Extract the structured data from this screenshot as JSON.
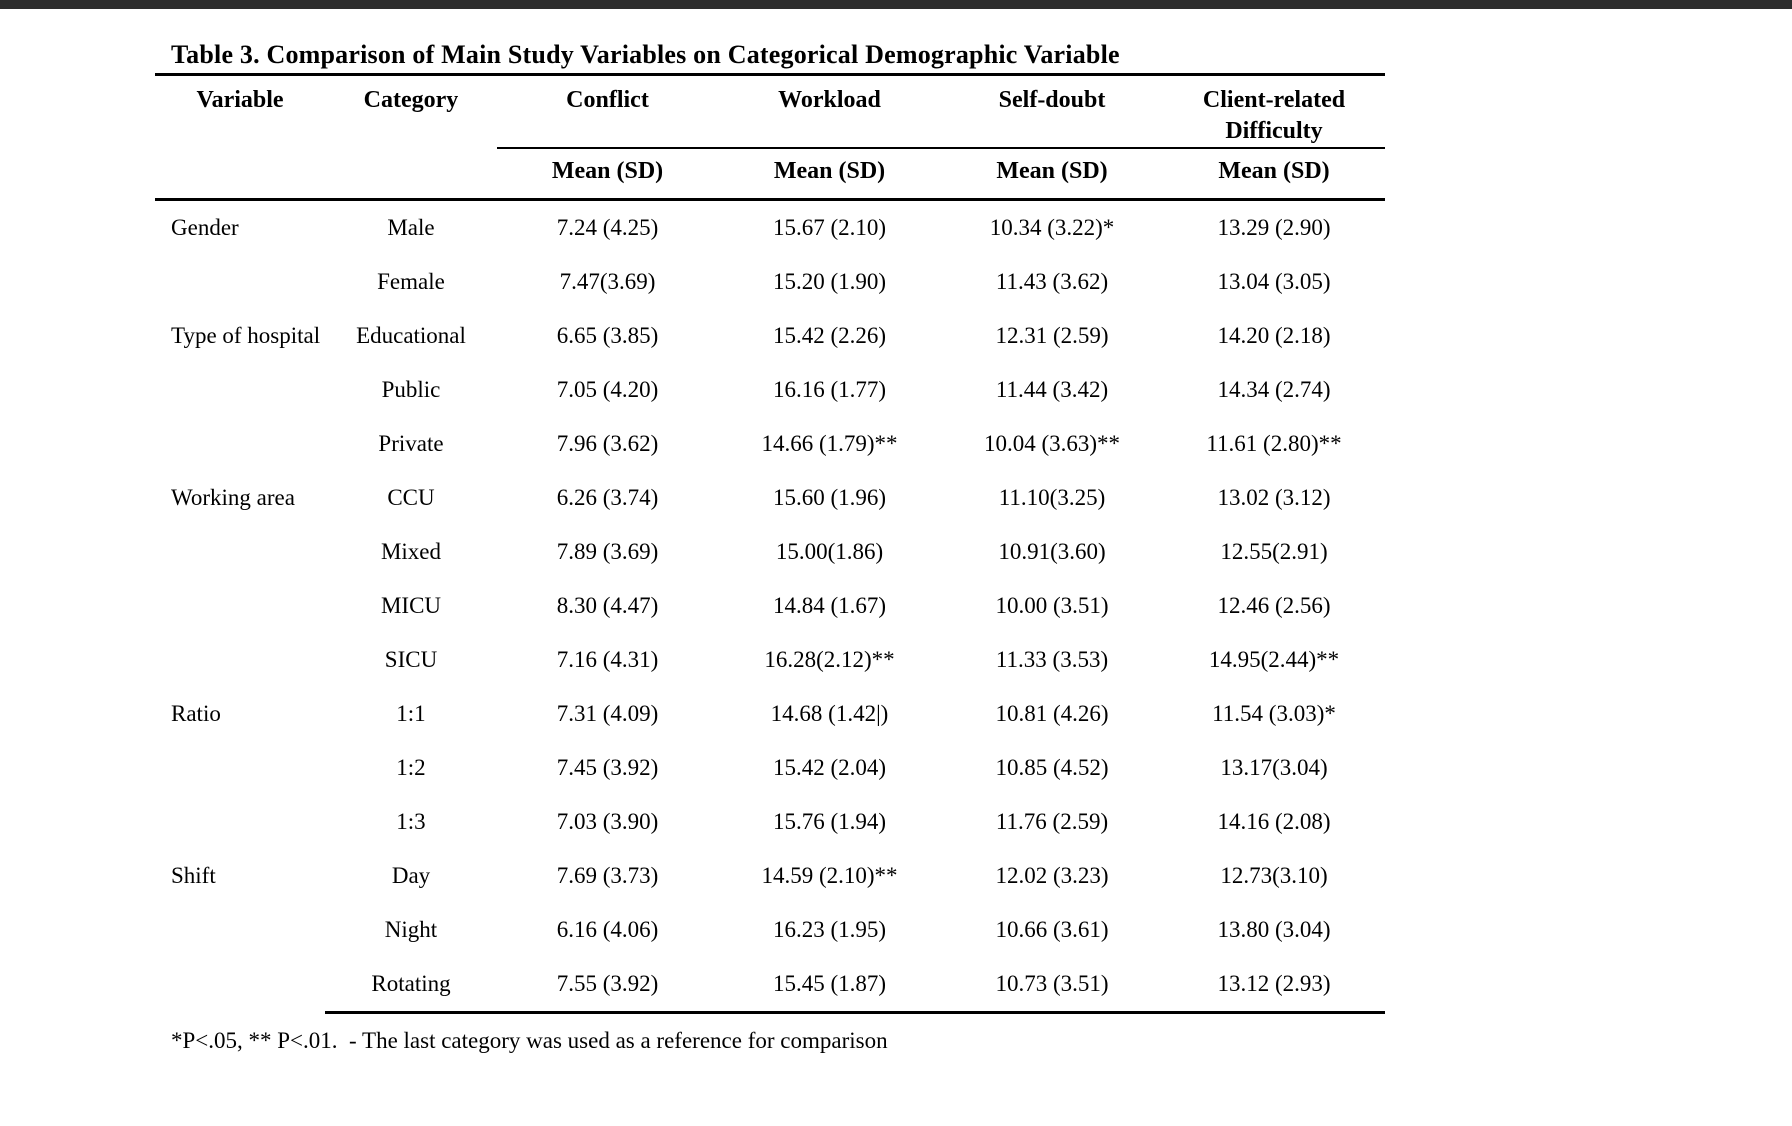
{
  "colors": {
    "top_bar": "#2e2e2e",
    "text": "#000000",
    "background": "#ffffff",
    "rule": "#000000"
  },
  "table": {
    "title": "Table 3. Comparison of Main Study Variables on Categorical Demographic Variable",
    "columns": [
      "Variable",
      "Category",
      "Conflict",
      "Workload",
      "Self-doubt",
      "Client-related Difficulty"
    ],
    "subheader": "Mean (SD)",
    "groups": [
      {
        "variable": "Gender",
        "rows": [
          {
            "category": "Male",
            "values": [
              "7.24 (4.25)",
              "15.67 (2.10)",
              "10.34 (3.22)*",
              "13.29 (2.90)"
            ]
          },
          {
            "category": "Female",
            "values": [
              "7.47(3.69)",
              "15.20 (1.90)",
              "11.43 (3.62)",
              "13.04 (3.05)"
            ]
          }
        ]
      },
      {
        "variable": "Type of hospital",
        "rows": [
          {
            "category": "Educational",
            "values": [
              "6.65 (3.85)",
              "15.42 (2.26)",
              "12.31 (2.59)",
              "14.20 (2.18)"
            ]
          },
          {
            "category": "Public",
            "values": [
              "7.05 (4.20)",
              "16.16 (1.77)",
              "11.44 (3.42)",
              "14.34 (2.74)"
            ]
          },
          {
            "category": "Private",
            "values": [
              "7.96 (3.62)",
              "14.66 (1.79)**",
              "10.04 (3.63)**",
              "11.61 (2.80)**"
            ]
          }
        ]
      },
      {
        "variable": "Working area",
        "rows": [
          {
            "category": "CCU",
            "values": [
              "6.26 (3.74)",
              "15.60 (1.96)",
              "11.10(3.25)",
              "13.02 (3.12)"
            ]
          },
          {
            "category": "Mixed",
            "values": [
              "7.89 (3.69)",
              "15.00(1.86)",
              "10.91(3.60)",
              "12.55(2.91)"
            ]
          },
          {
            "category": "MICU",
            "values": [
              "8.30 (4.47)",
              "14.84 (1.67)",
              "10.00 (3.51)",
              "12.46 (2.56)"
            ]
          },
          {
            "category": "SICU",
            "values": [
              "7.16 (4.31)",
              "16.28(2.12)**",
              "11.33 (3.53)",
              "14.95(2.44)**"
            ]
          }
        ]
      },
      {
        "variable": "Ratio",
        "rows": [
          {
            "category": "1:1",
            "values": [
              "7.31 (4.09)",
              "14.68 (1.42|)",
              "10.81 (4.26)",
              "11.54 (3.03)*"
            ]
          },
          {
            "category": "1:2",
            "values": [
              "7.45 (3.92)",
              "15.42 (2.04)",
              "10.85 (4.52)",
              "13.17(3.04)"
            ]
          },
          {
            "category": "1:3",
            "values": [
              "7.03 (3.90)",
              "15.76 (1.94)",
              "11.76 (2.59)",
              "14.16 (2.08)"
            ]
          }
        ]
      },
      {
        "variable": "Shift",
        "rows": [
          {
            "category": "Day",
            "values": [
              "7.69 (3.73)",
              "14.59 (2.10)**",
              "12.02 (3.23)",
              "12.73(3.10)"
            ]
          },
          {
            "category": "Night",
            "values": [
              "6.16 (4.06)",
              "16.23 (1.95)",
              "10.66 (3.61)",
              "13.80 (3.04)"
            ]
          },
          {
            "category": "Rotating",
            "values": [
              "7.55 (3.92)",
              "15.45 (1.87)",
              "10.73 (3.51)",
              "13.12 (2.93)"
            ]
          }
        ]
      }
    ],
    "footnote": "*P<.05, ** P<.01.  - The last category was used as a reference for comparison"
  }
}
